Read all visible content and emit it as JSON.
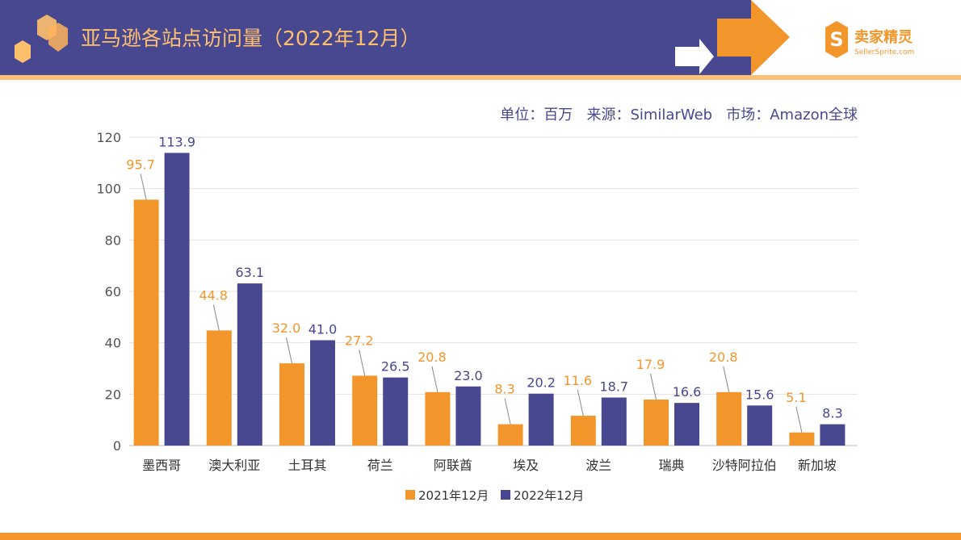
{
  "header": {
    "title": "亚马逊各站点访问量（2022年12月）",
    "logo_text": "卖家精灵",
    "logo_sub": "SellerSprite.com"
  },
  "meta": "单位：百万   来源：SimilarWeb   市场：Amazon全球",
  "chart_data": {
    "type": "bar",
    "title": "",
    "categories": [
      "墨西哥",
      "澳大利亚",
      "土耳其",
      "荷兰",
      "阿联酋",
      "埃及",
      "波兰",
      "瑞典",
      "沙特阿拉伯",
      "新加坡"
    ],
    "series": [
      {
        "name": "2021年12月",
        "color": "#f2962b",
        "values": [
          95.7,
          44.8,
          32.0,
          27.2,
          20.8,
          8.3,
          11.6,
          17.9,
          20.8,
          5.1
        ]
      },
      {
        "name": "2022年12月",
        "color": "#484890",
        "values": [
          113.9,
          63.1,
          41.0,
          26.5,
          23.0,
          20.2,
          18.7,
          16.6,
          15.6,
          8.3
        ]
      }
    ],
    "ylim": [
      0,
      120
    ],
    "yticks": [
      0,
      20,
      40,
      60,
      80,
      100,
      120
    ],
    "grid": true,
    "legend": "bottom"
  }
}
